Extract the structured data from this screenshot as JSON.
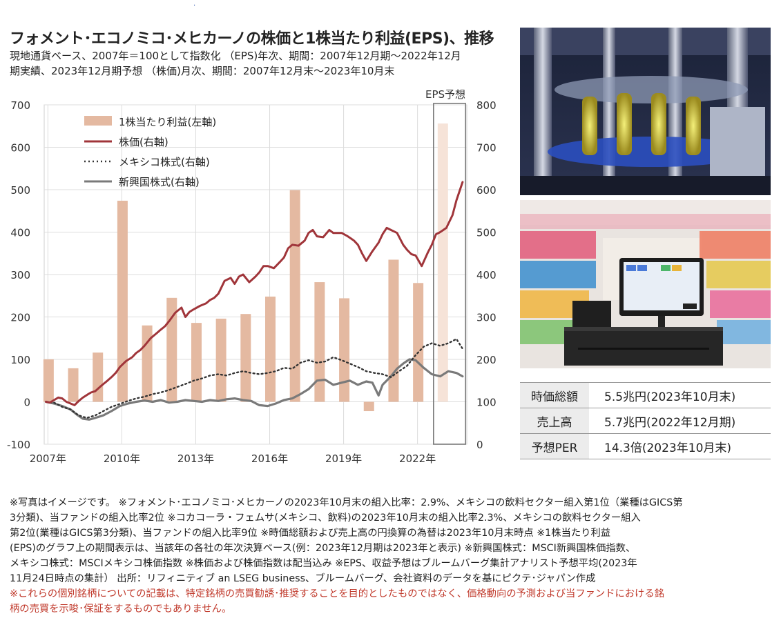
{
  "chart_data": {
    "type": "bar+line",
    "title": "フォメント･エコノミコ･メヒカーノの株価と1株当たり利益(EPS)、推移",
    "subtitle_lines": [
      "現地通貨ベース、2007年＝100として指数化 （EPS)年次、期間：2007年12月期～2022年12月",
      "期実績、2023年12月期予想 （株価)月次、期間：2007年12月末～2023年10月末"
    ],
    "forecast_label": "EPS予想",
    "x_tick_labels": [
      "2007年",
      "2010年",
      "2013年",
      "2016年",
      "2019年",
      "2022年"
    ],
    "x_tick_years": [
      2007,
      2010,
      2013,
      2016,
      2019,
      2022
    ],
    "xlim": [
      2006.85,
      2024.0
    ],
    "left_axis": {
      "ticks": [
        -100,
        0,
        100,
        200,
        300,
        400,
        500,
        600,
        700
      ],
      "ylim": [
        -100,
        700
      ]
    },
    "right_axis": {
      "ticks": [
        0,
        100,
        200,
        300,
        400,
        500,
        600,
        700,
        800
      ],
      "ylim": [
        0,
        800
      ]
    },
    "grid": true,
    "legend": [
      {
        "label": "1株当たり利益(左軸)",
        "style": "bar",
        "color": "#e4b9a1"
      },
      {
        "label": "株価(右軸)",
        "style": "line",
        "color": "#a0353a"
      },
      {
        "label": "メキシコ株式(右軸)",
        "style": "dotted",
        "color": "#333333"
      },
      {
        "label": "新興国株式(右軸)",
        "style": "line",
        "color": "#7a7a7a"
      }
    ],
    "eps": {
      "axis": "left",
      "categories": [
        2007,
        2008,
        2009,
        2010,
        2011,
        2012,
        2013,
        2014,
        2015,
        2016,
        2017,
        2018,
        2019,
        2020,
        2021,
        2022,
        2023
      ],
      "values": [
        100,
        79,
        116,
        474,
        180,
        245,
        186,
        196,
        207,
        248,
        499,
        282,
        244,
        -22,
        335,
        280,
        656
      ],
      "forecast_from": 2023
    },
    "series": [
      {
        "name": "株価(右軸)",
        "axis": "right",
        "color": "#a0353a",
        "width": 3,
        "x": [
          2006.92,
          2007.08,
          2007.25,
          2007.42,
          2007.58,
          2007.75,
          2007.92,
          2008.08,
          2008.25,
          2008.42,
          2008.58,
          2008.75,
          2008.92,
          2009.17,
          2009.42,
          2009.58,
          2009.75,
          2009.92,
          2010.17,
          2010.42,
          2010.58,
          2010.75,
          2010.92,
          2011.17,
          2011.42,
          2011.58,
          2011.75,
          2011.92,
          2012.17,
          2012.42,
          2012.58,
          2012.75,
          2012.92,
          2013.17,
          2013.42,
          2013.58,
          2013.75,
          2013.92,
          2014.17,
          2014.42,
          2014.58,
          2014.75,
          2014.92,
          2015.17,
          2015.42,
          2015.58,
          2015.75,
          2015.92,
          2016.17,
          2016.42,
          2016.58,
          2016.75,
          2016.92,
          2017.17,
          2017.42,
          2017.58,
          2017.75,
          2017.92,
          2018.17,
          2018.42,
          2018.58,
          2018.75,
          2018.92,
          2019.17,
          2019.42,
          2019.58,
          2019.75,
          2019.92,
          2020.17,
          2020.42,
          2020.58,
          2020.75,
          2020.92,
          2021.17,
          2021.42,
          2021.58,
          2021.75,
          2021.92,
          2022.17,
          2022.42,
          2022.58,
          2022.75,
          2022.92,
          2023.17,
          2023.42,
          2023.58,
          2023.83
        ],
        "values": [
          100,
          98,
          104,
          110,
          108,
          100,
          96,
          92,
          102,
          110,
          116,
          122,
          125,
          138,
          150,
          158,
          168,
          182,
          196,
          205,
          215,
          222,
          232,
          250,
          262,
          270,
          278,
          290,
          310,
          322,
          300,
          312,
          318,
          326,
          332,
          340,
          345,
          355,
          385,
          392,
          378,
          395,
          400,
          382,
          395,
          405,
          420,
          420,
          415,
          430,
          440,
          462,
          470,
          468,
          480,
          498,
          505,
          490,
          488,
          505,
          498,
          498,
          498,
          490,
          480,
          470,
          450,
          432,
          455,
          475,
          495,
          510,
          505,
          498,
          470,
          458,
          448,
          445,
          420,
          452,
          470,
          495,
          500,
          510,
          540,
          575,
          618
        ]
      },
      {
        "name": "メキシコ株式(右軸)",
        "axis": "right",
        "color": "#333333",
        "dash": "2,4",
        "width": 2.4,
        "x": [
          2006.92,
          2007.25,
          2007.58,
          2007.92,
          2008.25,
          2008.58,
          2008.92,
          2009.25,
          2009.58,
          2009.92,
          2010.25,
          2010.58,
          2010.92,
          2011.25,
          2011.58,
          2011.92,
          2012.25,
          2012.58,
          2012.92,
          2013.25,
          2013.58,
          2013.92,
          2014.25,
          2014.58,
          2014.92,
          2015.25,
          2015.58,
          2015.92,
          2016.25,
          2016.58,
          2016.92,
          2017.25,
          2017.58,
          2017.92,
          2018.25,
          2018.58,
          2018.92,
          2019.25,
          2019.58,
          2019.92,
          2020.25,
          2020.58,
          2020.92,
          2021.25,
          2021.58,
          2021.92,
          2022.25,
          2022.58,
          2022.92,
          2023.25,
          2023.58,
          2023.83
        ],
        "values": [
          100,
          98,
          88,
          82,
          68,
          62,
          68,
          78,
          88,
          95,
          102,
          108,
          112,
          118,
          122,
          128,
          135,
          142,
          150,
          155,
          162,
          165,
          162,
          168,
          172,
          168,
          165,
          168,
          172,
          180,
          178,
          192,
          198,
          192,
          195,
          205,
          198,
          190,
          182,
          172,
          168,
          165,
          158,
          172,
          185,
          210,
          230,
          238,
          232,
          238,
          248,
          225
        ]
      },
      {
        "name": "新興国株式(右軸)",
        "axis": "right",
        "color": "#7a7a7a",
        "width": 3.2,
        "x": [
          2006.92,
          2007.25,
          2007.58,
          2007.92,
          2008.17,
          2008.42,
          2008.67,
          2008.92,
          2009.25,
          2009.58,
          2009.92,
          2010.25,
          2010.58,
          2010.92,
          2011.25,
          2011.58,
          2011.92,
          2012.25,
          2012.58,
          2012.92,
          2013.25,
          2013.58,
          2013.92,
          2014.25,
          2014.58,
          2014.92,
          2015.25,
          2015.58,
          2015.92,
          2016.25,
          2016.58,
          2016.92,
          2017.25,
          2017.58,
          2017.92,
          2018.25,
          2018.58,
          2018.92,
          2019.25,
          2019.58,
          2019.92,
          2020.17,
          2020.42,
          2020.58,
          2020.92,
          2021.17,
          2021.42,
          2021.67,
          2021.92,
          2022.25,
          2022.58,
          2022.92,
          2023.25,
          2023.58,
          2023.83
        ],
        "values": [
          100,
          96,
          90,
          82,
          70,
          60,
          58,
          62,
          68,
          78,
          90,
          96,
          100,
          103,
          100,
          104,
          98,
          100,
          104,
          102,
          100,
          104,
          102,
          106,
          108,
          104,
          102,
          92,
          90,
          96,
          104,
          108,
          118,
          130,
          150,
          152,
          140,
          145,
          150,
          140,
          148,
          145,
          115,
          140,
          160,
          178,
          190,
          200,
          198,
          180,
          165,
          160,
          172,
          168,
          160
        ]
      }
    ]
  },
  "stats": [
    {
      "label": "時価総額",
      "value": "5.5兆円(2023年10月末)"
    },
    {
      "label": "売上高",
      "value": "5.7兆円(2022年12月期)"
    },
    {
      "label": "予想PER",
      "value": "14.3倍(2023年10月末)"
    }
  ],
  "notes": [
    "※写真はイメージです。 ※フォメント･エコノミコ･メヒカーノの2023年10月末の組入比率：2.9%、メキシコの飲料セクター組入第1位（業種はGICS第",
    "3分類)、当ファンドの組入比率2位 ※コカコーラ・フェムサ(メキシコ、飲料)の2023年10月末の組入比率2.3%、メキシコの飲料セクター組入",
    "第2位(業種はGICS第3分類)、当ファンドの組入比率9位 ※時価総額および売上高の円換算の為替は2023年10月末時点 ※1株当たり利益",
    "(EPS)のグラフ上の期間表示は、当該年の各社の年次決算ベース(例：2023年12月期は2023年と表示) ※新興国株式：MSCI新興国株価指数、",
    "メキシコ株式：MSCIメキシコ株価指数 ※株価および株価指数は配当込み ※EPS、収益予想はブルームバーグ集計アナリスト予想平均(2023年",
    "11月24日時点の集計） 出所：リフィニティブ an LSEG business、ブルームバーグ、会社資料のデータを基にピクテ･ジャパン作成"
  ],
  "disclaimer": [
    "※これらの個別銘柄についての記載は、特定銘柄の売買勧誘･推奨することを目的としたものではなく、価格動向の予測および当ファンドにおける銘",
    "柄の売買を示唆･保証をするものでもありません。"
  ],
  "top_mark": "."
}
